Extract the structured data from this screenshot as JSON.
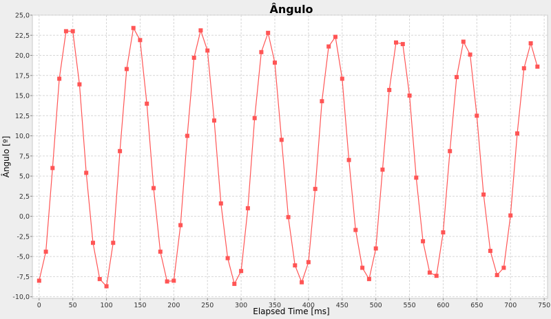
{
  "chart_data": {
    "type": "line",
    "title": "Ângulo",
    "xlabel": "Elapsed Time [ms]",
    "ylabel": "Ângulo [º]",
    "xlim": [
      -10,
      755
    ],
    "ylim": [
      -10.2,
      25
    ],
    "x_ticks": [
      0,
      50,
      100,
      150,
      200,
      250,
      300,
      350,
      400,
      450,
      500,
      550,
      600,
      650,
      700,
      750
    ],
    "x_tick_labels": [
      "0",
      "50",
      "100",
      "150",
      "200",
      "250",
      "300",
      "350",
      "400",
      "450",
      "500",
      "550",
      "600",
      "650",
      "700",
      "750"
    ],
    "y_ticks": [
      -10,
      -7.5,
      -5,
      -2.5,
      0,
      2.5,
      5,
      7.5,
      10,
      12.5,
      15,
      17.5,
      20,
      22.5,
      25
    ],
    "y_tick_labels": [
      "-10,0",
      "-7,5",
      "-5,0",
      "-2,5",
      "0,0",
      "2,5",
      "5,0",
      "7,5",
      "10,0",
      "12,5",
      "15,0",
      "17,5",
      "20,0",
      "22,5",
      "25,0"
    ],
    "grid": true,
    "color": "#ff5555",
    "series": [
      {
        "x": [
          0,
          10,
          20,
          30,
          40,
          50,
          60,
          70,
          80,
          90,
          100,
          110,
          120,
          130,
          140,
          150,
          160,
          170,
          180,
          190,
          200,
          210,
          220,
          230,
          240,
          250,
          260,
          270,
          280,
          290,
          300,
          310,
          320,
          330,
          340,
          350,
          360,
          370,
          380,
          390,
          400,
          410,
          420,
          430,
          440,
          450,
          460,
          470,
          480,
          490,
          500,
          510,
          520,
          530,
          540,
          550,
          560,
          570,
          580,
          590,
          600,
          610,
          620,
          630,
          640,
          650,
          660,
          670,
          680,
          690,
          700,
          710,
          720,
          730,
          740
        ],
        "y": [
          -8.0,
          -4.4,
          6.0,
          17.1,
          23.0,
          23.0,
          16.4,
          5.4,
          -3.3,
          -7.8,
          -8.7,
          -3.3,
          8.1,
          18.3,
          23.4,
          21.9,
          14.0,
          3.5,
          -4.4,
          -8.1,
          -8.0,
          -1.1,
          10.0,
          19.7,
          23.1,
          20.6,
          11.9,
          1.6,
          -5.2,
          -8.4,
          -6.8,
          1.0,
          12.2,
          20.4,
          22.8,
          19.1,
          9.5,
          -0.1,
          -6.1,
          -8.2,
          -5.7,
          3.4,
          14.3,
          21.1,
          22.3,
          17.1,
          7.0,
          -1.7,
          -6.4,
          -7.8,
          -4.0,
          5.8,
          15.7,
          21.6,
          21.4,
          15.0,
          4.8,
          -3.1,
          -7.0,
          -7.4,
          -2.0,
          8.1,
          17.3,
          21.7,
          20.1,
          12.5,
          2.7,
          -4.3,
          -7.3,
          -6.4,
          0.1,
          10.3,
          18.4,
          21.5,
          18.6
        ]
      }
    ]
  }
}
